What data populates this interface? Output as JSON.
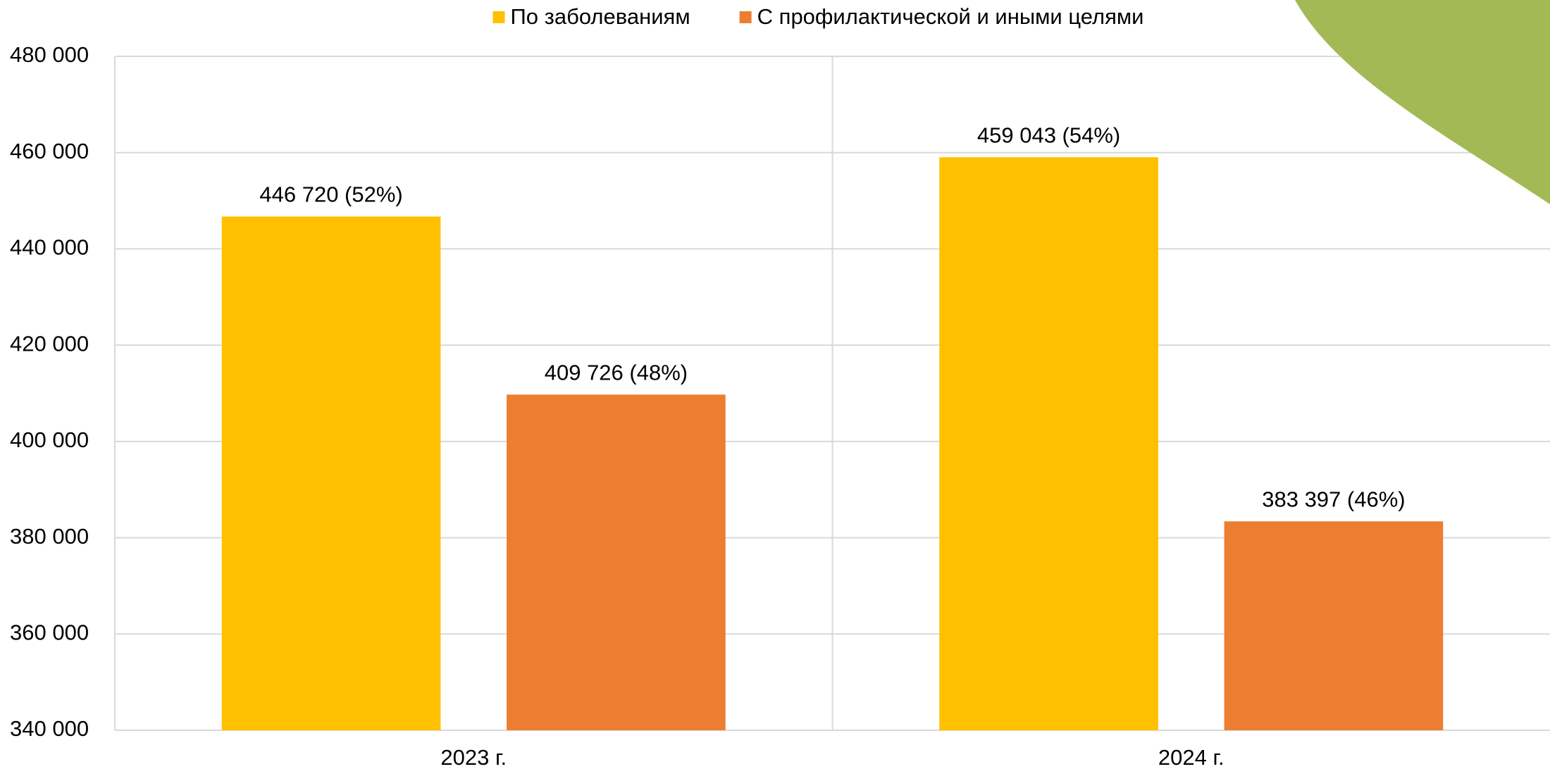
{
  "chart_data": {
    "type": "bar",
    "categories": [
      "2023 г.",
      "2024 г."
    ],
    "series": [
      {
        "name": "По заболеваниям",
        "color": "#FFC000",
        "values": [
          446720,
          459043
        ],
        "value_labels": [
          "446 720 (52%)",
          "459 043 (54%)"
        ]
      },
      {
        "name": "С профилактической и иными целями",
        "color": "#ED7D31",
        "values": [
          409726,
          383397
        ],
        "value_labels": [
          "409 726 (48%)",
          "383 397 (46%)"
        ]
      }
    ],
    "ylim": [
      340000,
      480000
    ],
    "yticks": [
      {
        "value": 340000,
        "label": "340 000"
      },
      {
        "value": 360000,
        "label": "360 000"
      },
      {
        "value": 380000,
        "label": "380 000"
      },
      {
        "value": 400000,
        "label": "400 000"
      },
      {
        "value": 420000,
        "label": "420 000"
      },
      {
        "value": 440000,
        "label": "440 000"
      },
      {
        "value": 460000,
        "label": "460 000"
      },
      {
        "value": 480000,
        "label": "480 000"
      }
    ],
    "grid": true,
    "legend": "top"
  }
}
